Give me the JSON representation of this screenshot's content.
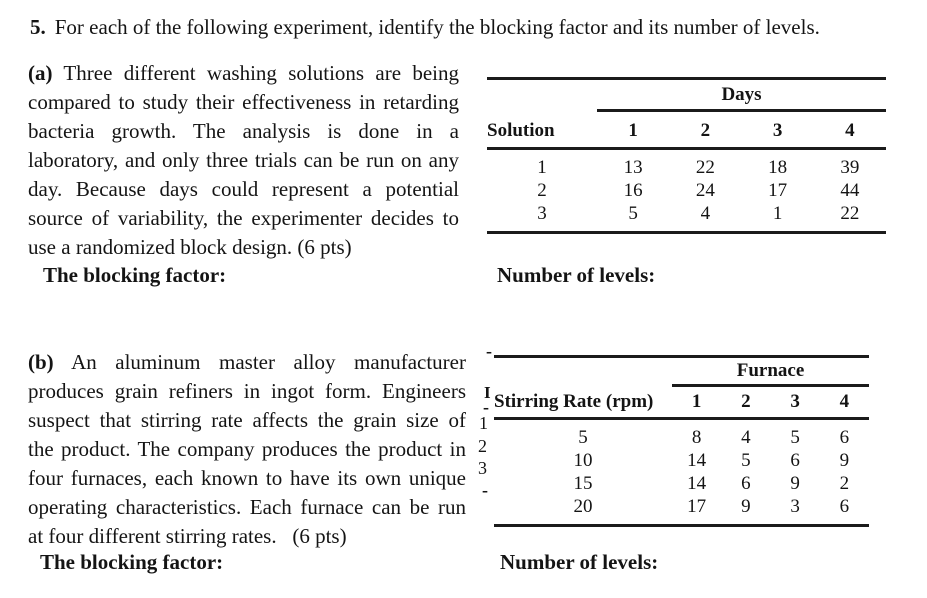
{
  "title": {
    "number": "5.",
    "text": "For each of the following experiment, identify the blocking factor and its number of levels."
  },
  "section_a": {
    "paragraph": {
      "bold_lead": "(a)",
      "lines": [
        "Three different washing solutions are being",
        "compared to study their effectiveness in retarding",
        "bacteria growth. The analysis is done in a",
        "laboratory, and only three trials can be run on any",
        "day. Because days could represent a potential",
        "source of variability, the experimenter decides to",
        "use a randomized block design. (6 pts)"
      ]
    },
    "table": {
      "span_header": "Days",
      "row_header": "Solution",
      "col_headers": [
        "1",
        "2",
        "3",
        "4"
      ],
      "rows": [
        {
          "label": "1",
          "values": [
            "13",
            "22",
            "18",
            "39"
          ]
        },
        {
          "label": "2",
          "values": [
            "16",
            "24",
            "17",
            "44"
          ]
        },
        {
          "label": "3",
          "values": [
            "5",
            "4",
            "1",
            "22"
          ]
        }
      ]
    },
    "blocking_factor_label": "The blocking factor:",
    "levels_label": "Number of levels:"
  },
  "section_b": {
    "paragraph": {
      "bold_lead": "(b)",
      "lines": [
        "An aluminum master alloy manufacturer",
        "produces grain refiners in ingot form. Engineers",
        "suspect that stirring rate affects the grain size of",
        "the product. The company produces the product in",
        "four furnaces, each known to have its own unique",
        "operating characteristics. Each furnace can be run",
        "at four different stirring rates.  (6 pts)"
      ]
    },
    "table": {
      "span_header": "Furnace",
      "row_header": "Stirring Rate (rpm)",
      "col_headers": [
        "1",
        "2",
        "3",
        "4"
      ],
      "rows": [
        {
          "label": "5",
          "values": [
            "8",
            "4",
            "5",
            "6"
          ]
        },
        {
          "label": "10",
          "values": [
            "14",
            "5",
            "6",
            "9"
          ]
        },
        {
          "label": "15",
          "values": [
            "14",
            "6",
            "9",
            "2"
          ]
        },
        {
          "label": "20",
          "values": [
            "17",
            "9",
            "3",
            "6"
          ]
        }
      ]
    },
    "clipped_fragments": [
      "-",
      "I",
      "-",
      "1",
      "2",
      "3",
      "-"
    ],
    "blocking_factor_label": "The blocking factor:",
    "levels_label": "Number of levels:"
  }
}
